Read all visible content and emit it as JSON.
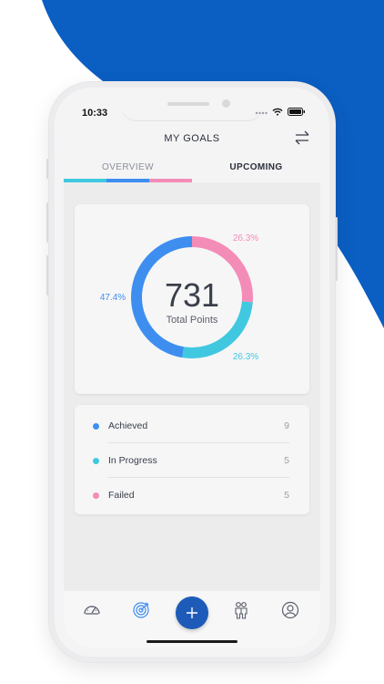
{
  "colors": {
    "brand_blue": "#0b5ec2",
    "achieved": "#3e8ef0",
    "in_progress": "#40c8e0",
    "failed": "#f48cb8",
    "fab": "#1e5bb8"
  },
  "status_bar": {
    "time": "10:33"
  },
  "header": {
    "title": "MY GOALS",
    "swap_icon": "swap-arrows-icon"
  },
  "tabs": [
    {
      "label": "OVERVIEW",
      "active": true
    },
    {
      "label": "UPCOMING",
      "active": false
    }
  ],
  "chart_data": {
    "type": "pie",
    "style": "donut",
    "center_value": "731",
    "center_label": "Total Points",
    "slices": [
      {
        "name": "Achieved",
        "value": 47.4,
        "label": "47.4%",
        "color": "#3e8ef0"
      },
      {
        "name": "In Progress",
        "value": 26.3,
        "label": "26.3%",
        "color": "#40c8e0"
      },
      {
        "name": "Failed",
        "value": 26.3,
        "label": "26.3%",
        "color": "#f48cb8"
      }
    ]
  },
  "legend": [
    {
      "label": "Achieved",
      "count": "9",
      "color": "#3e8ef0"
    },
    {
      "label": "In Progress",
      "count": "5",
      "color": "#40c8e0"
    },
    {
      "label": "Failed",
      "count": "5",
      "color": "#f48cb8"
    }
  ],
  "bottom_nav": {
    "items": [
      "speedometer-icon",
      "target-icon",
      "plus-icon",
      "people-icon",
      "profile-icon"
    ]
  }
}
